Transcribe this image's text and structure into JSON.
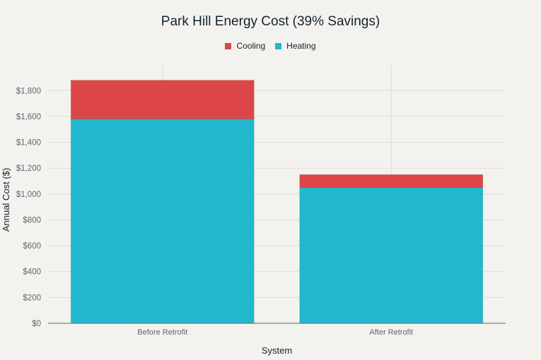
{
  "chart_data": {
    "type": "bar",
    "stacked": true,
    "title": "Park Hill Energy Cost (39% Savings)",
    "xlabel": "System",
    "ylabel": "Annual Cost ($)",
    "categories": [
      "Before Retrofit",
      "After Retrofit"
    ],
    "series": [
      {
        "name": "Heating",
        "values": [
          1580,
          1050
        ],
        "color": "#21b8cd"
      },
      {
        "name": "Cooling",
        "values": [
          300,
          100
        ],
        "color": "#dc4649"
      }
    ],
    "legend_order": [
      "Cooling",
      "Heating"
    ],
    "legend_position": "top-center",
    "ylim": [
      0,
      1980
    ],
    "yticks": [
      0,
      200,
      400,
      600,
      800,
      1000,
      1200,
      1400,
      1600,
      1800
    ],
    "ytick_labels": [
      "$0",
      "$200",
      "$400",
      "$600",
      "$800",
      "$1,000",
      "$1,200",
      "$1,400",
      "$1,600",
      "$1,800"
    ],
    "grid": true
  }
}
